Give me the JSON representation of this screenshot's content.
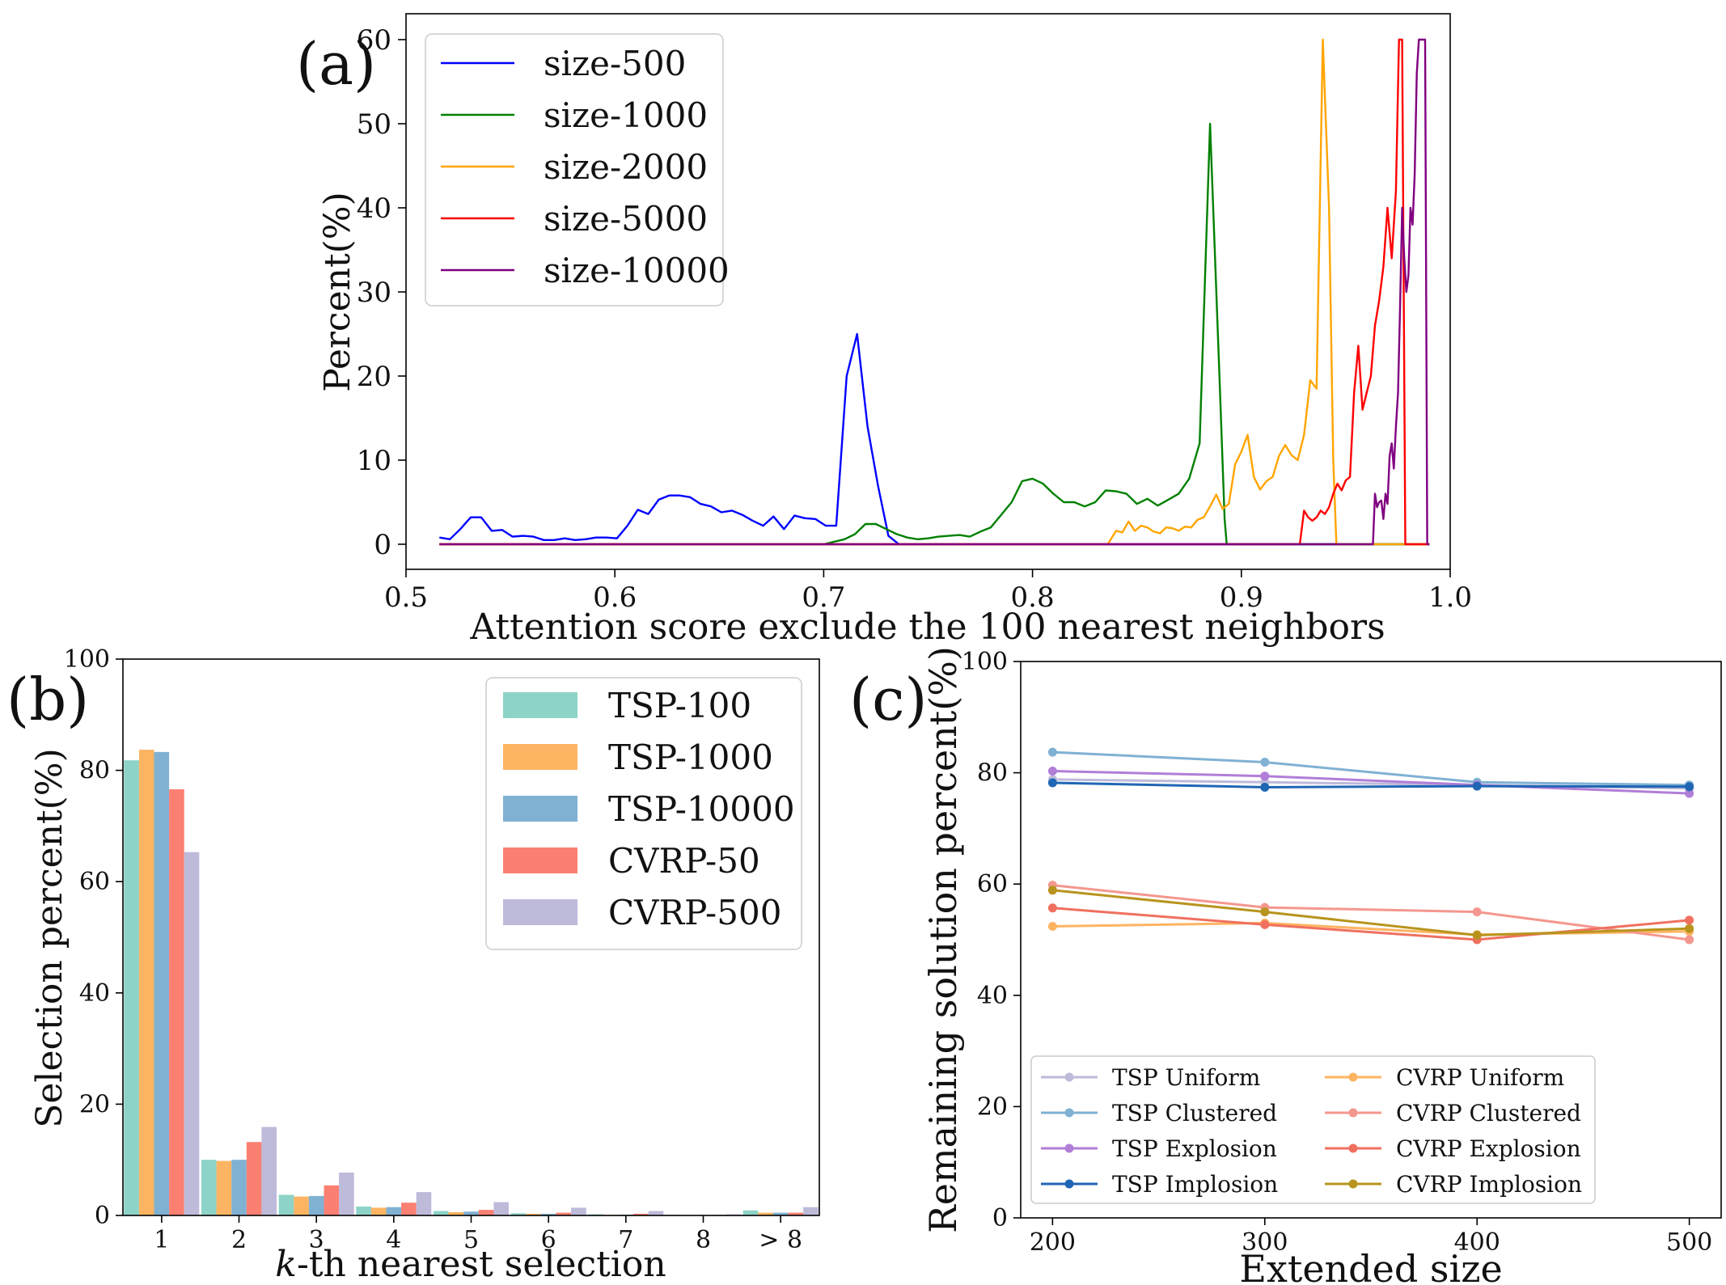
{
  "chart_data": [
    {
      "id": "a",
      "panel_label": "(a)",
      "type": "line",
      "xlabel": "Attention score exclude the 100 nearest neighbors",
      "ylabel": "Percent(%)",
      "xlim": [
        0.5,
        1.0
      ],
      "ylim": [
        -3,
        63
      ],
      "xticks": [
        0.5,
        0.6,
        0.7,
        0.8,
        0.9,
        1.0
      ],
      "xtick_labels": [
        "0.5",
        "0.6",
        "0.7",
        "0.8",
        "0.9",
        "1.0"
      ],
      "yticks": [
        0,
        10,
        20,
        30,
        40,
        50,
        60
      ],
      "ytick_labels": [
        "0",
        "10",
        "20",
        "30",
        "40",
        "50",
        "60"
      ],
      "legend_position": "top-left",
      "series": [
        {
          "name": "size-500",
          "color": "#0000ff",
          "x": [
            0.516,
            0.521,
            0.526,
            0.531,
            0.536,
            0.541,
            0.546,
            0.551,
            0.556,
            0.561,
            0.566,
            0.571,
            0.576,
            0.581,
            0.586,
            0.591,
            0.596,
            0.601,
            0.606,
            0.611,
            0.616,
            0.621,
            0.626,
            0.631,
            0.636,
            0.641,
            0.646,
            0.651,
            0.656,
            0.661,
            0.666,
            0.671,
            0.676,
            0.681,
            0.686,
            0.691,
            0.696,
            0.701,
            0.706,
            0.711,
            0.716,
            0.721,
            0.726,
            0.731,
            0.736,
            0.741,
            0.746,
            0.751,
            0.756,
            0.761,
            0.766,
            0.771,
            0.776,
            0.781,
            0.783,
            0.784,
            0.785,
            0.79,
            0.8,
            0.9,
            0.99
          ],
          "y": [
            0.8,
            0.6,
            1.8,
            3.2,
            3.2,
            1.6,
            1.7,
            0.9,
            1.0,
            0.9,
            0.5,
            0.5,
            0.7,
            0.5,
            0.6,
            0.8,
            0.8,
            0.7,
            2.2,
            4.1,
            3.6,
            5.3,
            5.8,
            5.8,
            5.6,
            4.8,
            4.5,
            3.8,
            4.0,
            3.5,
            2.8,
            2.2,
            3.3,
            1.8,
            3.4,
            3.1,
            3.0,
            2.2,
            2.2,
            20.0,
            25.0,
            14.0,
            7.0,
            1.0,
            0,
            0,
            0,
            0,
            0,
            0,
            0,
            0,
            0,
            0,
            0,
            0,
            0,
            0,
            0,
            0,
            0
          ]
        },
        {
          "name": "size-1000",
          "color": "#008000",
          "x": [
            0.516,
            0.6,
            0.7,
            0.71,
            0.715,
            0.72,
            0.725,
            0.73,
            0.735,
            0.74,
            0.745,
            0.75,
            0.755,
            0.76,
            0.765,
            0.77,
            0.775,
            0.78,
            0.785,
            0.79,
            0.795,
            0.8,
            0.805,
            0.81,
            0.815,
            0.82,
            0.825,
            0.83,
            0.835,
            0.84,
            0.845,
            0.85,
            0.855,
            0.86,
            0.865,
            0.87,
            0.875,
            0.88,
            0.885,
            0.8895,
            0.892,
            0.893,
            0.894,
            0.95,
            0.99
          ],
          "y": [
            0,
            0,
            0,
            0.6,
            1.2,
            2.4,
            2.4,
            1.8,
            1.2,
            0.8,
            0.6,
            0.7,
            0.9,
            1.0,
            1.1,
            0.9,
            1.5,
            2.0,
            3.5,
            5.0,
            7.5,
            7.8,
            7.2,
            6.0,
            5.0,
            5.0,
            4.5,
            5.0,
            6.4,
            6.3,
            6.0,
            4.8,
            5.4,
            4.6,
            5.3,
            6.0,
            7.8,
            12.0,
            50.0,
            20.0,
            3.0,
            0,
            0,
            0,
            0
          ]
        },
        {
          "name": "size-2000",
          "color": "#ffa500",
          "x": [
            0.516,
            0.7,
            0.836,
            0.84,
            0.843,
            0.846,
            0.849,
            0.852,
            0.855,
            0.858,
            0.861,
            0.864,
            0.867,
            0.87,
            0.873,
            0.876,
            0.879,
            0.882,
            0.885,
            0.888,
            0.891,
            0.894,
            0.897,
            0.9,
            0.903,
            0.906,
            0.909,
            0.912,
            0.915,
            0.918,
            0.921,
            0.924,
            0.927,
            0.93,
            0.933,
            0.936,
            0.939,
            0.942,
            0.944,
            0.9455,
            0.947,
            0.99
          ],
          "y": [
            0,
            0,
            0,
            1.6,
            1.4,
            2.7,
            1.6,
            2.2,
            2.0,
            1.5,
            1.3,
            2.0,
            1.9,
            1.6,
            2.1,
            2.0,
            2.9,
            3.2,
            4.5,
            5.9,
            4.2,
            4.8,
            9.5,
            11.0,
            13.0,
            8.0,
            6.5,
            7.5,
            8.0,
            10.5,
            11.8,
            10.6,
            10.0,
            13.0,
            19.5,
            18.5,
            60.0,
            40.0,
            10.0,
            0,
            0,
            0
          ]
        },
        {
          "name": "size-5000",
          "color": "#ff0000",
          "x": [
            0.516,
            0.8,
            0.928,
            0.93,
            0.932,
            0.934,
            0.936,
            0.938,
            0.94,
            0.942,
            0.944,
            0.946,
            0.948,
            0.95,
            0.952,
            0.954,
            0.956,
            0.958,
            0.96,
            0.962,
            0.964,
            0.966,
            0.968,
            0.97,
            0.972,
            0.974,
            0.9755,
            0.977,
            0.9785,
            0.979,
            0.99
          ],
          "y": [
            0,
            0,
            0,
            4.0,
            3.2,
            2.8,
            3.2,
            4.0,
            3.6,
            4.4,
            6.0,
            7.2,
            6.4,
            7.6,
            8.0,
            18.0,
            23.6,
            16.0,
            18.0,
            20.0,
            26.0,
            29.0,
            33.0,
            40.0,
            34.0,
            42.0,
            60.0,
            60.0,
            0,
            0,
            0
          ]
        },
        {
          "name": "size-10000",
          "color": "#800080",
          "x": [
            0.516,
            0.9,
            0.963,
            0.964,
            0.965,
            0.966,
            0.967,
            0.968,
            0.969,
            0.97,
            0.971,
            0.972,
            0.973,
            0.974,
            0.975,
            0.976,
            0.977,
            0.978,
            0.979,
            0.98,
            0.981,
            0.982,
            0.983,
            0.984,
            0.985,
            0.986,
            0.987,
            0.988,
            0.989,
            0.99
          ],
          "y": [
            0,
            0,
            0,
            6.0,
            4.4,
            5.0,
            5.2,
            3.0,
            6.0,
            4.8,
            10.5,
            12.0,
            9.0,
            14.0,
            18.0,
            28.0,
            40.0,
            34.0,
            30.0,
            32.0,
            40.0,
            38.0,
            44.0,
            56.0,
            60.0,
            60.0,
            60.0,
            60.0,
            0,
            0
          ]
        }
      ]
    },
    {
      "id": "b",
      "panel_label": "(b)",
      "type": "bar",
      "xlabel": "k-th nearest selection",
      "xlabel_italic": "k",
      "xlabel_rest": "-th nearest selection",
      "ylabel": "Selection percent(%)",
      "ylim": [
        0,
        100
      ],
      "yticks": [
        0,
        20,
        40,
        60,
        80,
        100
      ],
      "ytick_labels": [
        "0",
        "20",
        "40",
        "60",
        "80",
        "100"
      ],
      "categories": [
        "1",
        "2",
        "3",
        "4",
        "5",
        "6",
        "7",
        "8",
        "> 8"
      ],
      "legend_position": "top-right",
      "series": [
        {
          "name": "TSP-100",
          "color": "#8dd3c7",
          "values": [
            81.8,
            10.0,
            3.7,
            1.6,
            0.8,
            0.4,
            0.2,
            0.1,
            0.9
          ]
        },
        {
          "name": "TSP-1000",
          "color": "#fdb462",
          "values": [
            83.7,
            9.8,
            3.4,
            1.4,
            0.6,
            0.3,
            0.1,
            0.05,
            0.5
          ]
        },
        {
          "name": "TSP-10000",
          "color": "#80b1d3",
          "values": [
            83.3,
            10.0,
            3.5,
            1.5,
            0.7,
            0.3,
            0.15,
            0.05,
            0.5
          ]
        },
        {
          "name": "CVRP-50",
          "color": "#fb8072",
          "values": [
            76.6,
            13.2,
            5.4,
            2.3,
            1.0,
            0.5,
            0.3,
            0.1,
            0.5
          ]
        },
        {
          "name": "CVRP-500",
          "color": "#bebada",
          "values": [
            65.3,
            15.9,
            7.7,
            4.2,
            2.4,
            1.4,
            0.8,
            0.2,
            1.5
          ]
        }
      ]
    },
    {
      "id": "c",
      "panel_label": "(c)",
      "type": "line",
      "xlabel": "Extended size",
      "ylabel": "Remaining solution percent(%)",
      "xlim": [
        185,
        515
      ],
      "ylim": [
        0,
        100
      ],
      "xticks": [
        200,
        300,
        400,
        500
      ],
      "xtick_labels": [
        "200",
        "300",
        "400",
        "500"
      ],
      "yticks": [
        0,
        20,
        40,
        60,
        80,
        100
      ],
      "ytick_labels": [
        "0",
        "20",
        "40",
        "60",
        "80",
        "100"
      ],
      "legend_position": "bottom",
      "x": [
        200,
        300,
        400,
        500
      ],
      "series": [
        {
          "name": "TSP Uniform",
          "color": "#bebada",
          "values": [
            78.8,
            78.3,
            77.8,
            77.2
          ]
        },
        {
          "name": "TSP Clustered",
          "color": "#80b1d3",
          "values": [
            83.7,
            81.9,
            78.3,
            77.8
          ]
        },
        {
          "name": "TSP Explosion",
          "color": "#b17ed8",
          "values": [
            80.3,
            79.4,
            77.8,
            76.3
          ]
        },
        {
          "name": "TSP Implosion",
          "color": "#1f66b4",
          "values": [
            78.2,
            77.4,
            77.6,
            77.5
          ]
        },
        {
          "name": "CVRP Uniform",
          "color": "#fdb462",
          "values": [
            52.4,
            53.0,
            50.9,
            51.5
          ]
        },
        {
          "name": "CVRP Clustered",
          "color": "#f4978e",
          "values": [
            59.8,
            55.8,
            55.0,
            50.0
          ]
        },
        {
          "name": "CVRP Explosion",
          "color": "#f0705f",
          "values": [
            55.7,
            52.7,
            50.0,
            53.5
          ]
        },
        {
          "name": "CVRP Implosion",
          "color": "#b8941e",
          "values": [
            58.9,
            55.0,
            50.8,
            52.0
          ]
        }
      ]
    }
  ]
}
